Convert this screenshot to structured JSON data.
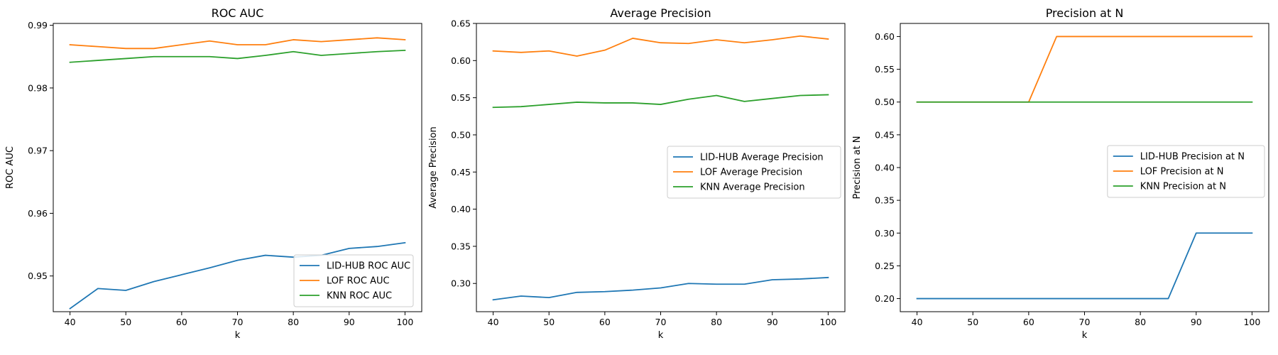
{
  "chart_data": [
    {
      "type": "line",
      "title": "ROC AUC",
      "xlabel": "k",
      "ylabel": "ROC AUC",
      "xlim": [
        37,
        103
      ],
      "ylim": [
        0.9443,
        0.9903
      ],
      "xticks": [
        40,
        50,
        60,
        70,
        80,
        90,
        100
      ],
      "yticks": [
        0.95,
        0.96,
        0.97,
        0.98,
        0.99
      ],
      "ytick_labels": [
        "0.95",
        "0.96",
        "0.97",
        "0.98",
        "0.99"
      ],
      "grid": false,
      "legend": "lower-right",
      "x": [
        40,
        45,
        50,
        55,
        60,
        65,
        70,
        75,
        80,
        85,
        90,
        95,
        100
      ],
      "series": [
        {
          "name": "LID-HUB ROC AUC",
          "color": "#1f77b4",
          "values": [
            0.9448,
            0.948,
            0.9477,
            0.9491,
            0.9502,
            0.9513,
            0.9525,
            0.9533,
            0.953,
            0.9533,
            0.9544,
            0.9547,
            0.9553
          ]
        },
        {
          "name": "LOF ROC AUC",
          "color": "#ff7f0e",
          "values": [
            0.9869,
            0.9866,
            0.9863,
            0.9863,
            0.9869,
            0.9875,
            0.9869,
            0.9869,
            0.9877,
            0.9874,
            0.9877,
            0.988,
            0.9877
          ]
        },
        {
          "name": "KNN ROC AUC",
          "color": "#2ca02c",
          "values": [
            0.9841,
            0.9844,
            0.9847,
            0.985,
            0.985,
            0.985,
            0.9847,
            0.9852,
            0.9858,
            0.9852,
            0.9855,
            0.9858,
            0.986
          ]
        }
      ]
    },
    {
      "type": "line",
      "title": "Average Precision",
      "xlabel": "k",
      "ylabel": "Average Precision",
      "xlim": [
        37,
        103
      ],
      "ylim": [
        0.262,
        0.65
      ],
      "xticks": [
        40,
        50,
        60,
        70,
        80,
        90,
        100
      ],
      "yticks": [
        0.3,
        0.35,
        0.4,
        0.45,
        0.5,
        0.55,
        0.6,
        0.65
      ],
      "ytick_labels": [
        "0.30",
        "0.35",
        "0.40",
        "0.45",
        "0.50",
        "0.55",
        "0.60",
        "0.65"
      ],
      "grid": false,
      "legend": "center-right",
      "x": [
        40,
        45,
        50,
        55,
        60,
        65,
        70,
        75,
        80,
        85,
        90,
        95,
        100
      ],
      "series": [
        {
          "name": "LID-HUB Average Precision",
          "color": "#1f77b4",
          "values": [
            0.278,
            0.283,
            0.281,
            0.288,
            0.289,
            0.291,
            0.294,
            0.3,
            0.299,
            0.299,
            0.305,
            0.306,
            0.308
          ]
        },
        {
          "name": "LOF Average Precision",
          "color": "#ff7f0e",
          "values": [
            0.613,
            0.611,
            0.613,
            0.606,
            0.614,
            0.63,
            0.624,
            0.623,
            0.628,
            0.624,
            0.628,
            0.633,
            0.629
          ]
        },
        {
          "name": "KNN Average Precision",
          "color": "#2ca02c",
          "values": [
            0.537,
            0.538,
            0.541,
            0.544,
            0.543,
            0.543,
            0.541,
            0.548,
            0.553,
            0.545,
            0.549,
            0.553,
            0.554
          ]
        }
      ]
    },
    {
      "type": "line",
      "title": "Precision at N",
      "xlabel": "k",
      "ylabel": "Precision at N",
      "xlim": [
        37,
        103
      ],
      "ylim": [
        0.18,
        0.62
      ],
      "xticks": [
        40,
        50,
        60,
        70,
        80,
        90,
        100
      ],
      "yticks": [
        0.2,
        0.25,
        0.3,
        0.35,
        0.4,
        0.45,
        0.5,
        0.55,
        0.6
      ],
      "ytick_labels": [
        "0.20",
        "0.25",
        "0.30",
        "0.35",
        "0.40",
        "0.45",
        "0.50",
        "0.55",
        "0.60"
      ],
      "grid": false,
      "legend": "center-right",
      "x": [
        40,
        45,
        50,
        55,
        60,
        65,
        70,
        75,
        80,
        85,
        90,
        95,
        100
      ],
      "series": [
        {
          "name": "LID-HUB Precision at N",
          "color": "#1f77b4",
          "values": [
            0.2,
            0.2,
            0.2,
            0.2,
            0.2,
            0.2,
            0.2,
            0.2,
            0.2,
            0.2,
            0.3,
            0.3,
            0.3
          ]
        },
        {
          "name": "LOF Precision at N",
          "color": "#ff7f0e",
          "values": [
            0.5,
            0.5,
            0.5,
            0.5,
            0.5,
            0.6,
            0.6,
            0.6,
            0.6,
            0.6,
            0.6,
            0.6,
            0.6
          ]
        },
        {
          "name": "KNN Precision at N",
          "color": "#2ca02c",
          "values": [
            0.5,
            0.5,
            0.5,
            0.5,
            0.5,
            0.5,
            0.5,
            0.5,
            0.5,
            0.5,
            0.5,
            0.5,
            0.5
          ]
        }
      ]
    }
  ]
}
